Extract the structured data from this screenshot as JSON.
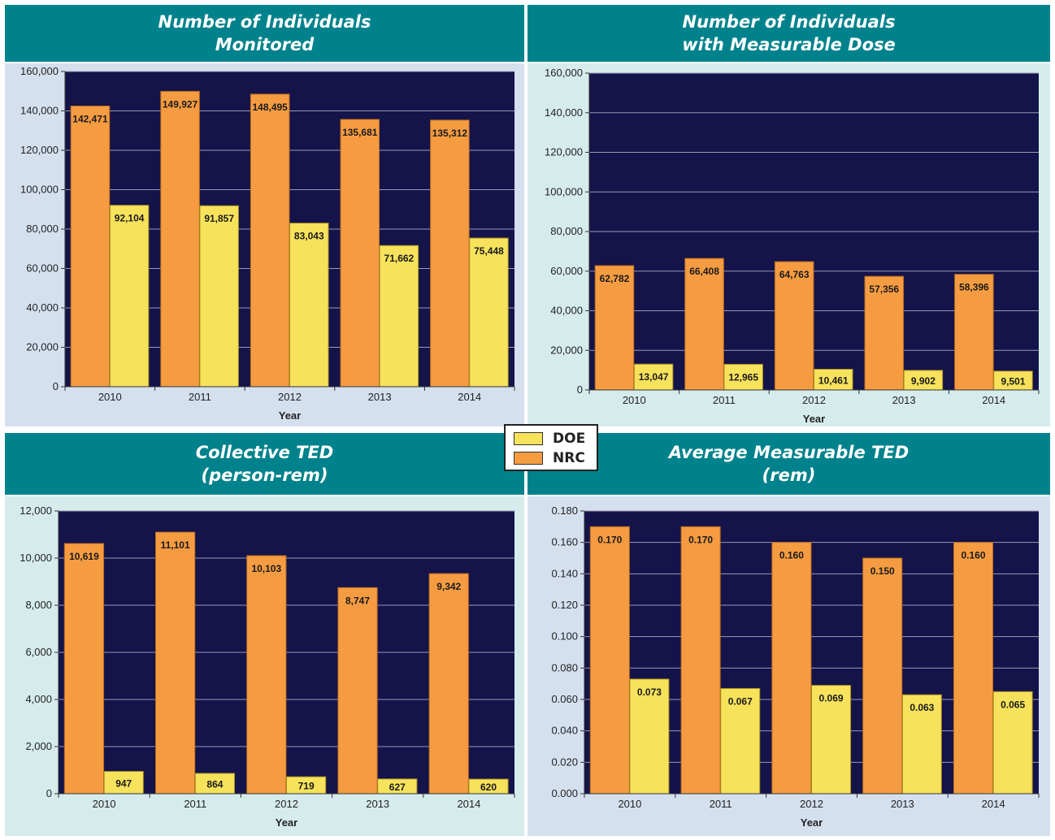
{
  "colors": {
    "header_bg": "#00828c",
    "plot_bg": "#14134a",
    "doe": "#f7e25c",
    "nrc": "#f59c42",
    "panel_bg_blue": "#d5e0ef",
    "panel_bg_mint": "#d6ecec"
  },
  "legend": {
    "items": [
      {
        "label": "DOE",
        "color": "#f7e25c"
      },
      {
        "label": "NRC",
        "color": "#f59c42"
      }
    ]
  },
  "chart_data": [
    {
      "type": "bar",
      "title_lines": [
        "Number of Individuals",
        "Monitored"
      ],
      "categories": [
        "2010",
        "2011",
        "2012",
        "2013",
        "2014"
      ],
      "series": [
        {
          "name": "NRC",
          "values": [
            142471,
            149927,
            148495,
            135681,
            135312
          ],
          "labels": [
            "142,471",
            "149,927",
            "148,495",
            "135,681",
            "135,312"
          ]
        },
        {
          "name": "DOE",
          "values": [
            92104,
            91857,
            83043,
            71662,
            75448
          ],
          "labels": [
            "92,104",
            "91,857",
            "83,043",
            "71,662",
            "75,448"
          ]
        }
      ],
      "xlabel": "Year",
      "ylabel": "",
      "ylim": [
        0,
        160000
      ],
      "yticks": [
        "0",
        "20,000",
        "40,000",
        "60,000",
        "80,000",
        "100,000",
        "120,000",
        "140,000",
        "160,000"
      ],
      "grid": true
    },
    {
      "type": "bar",
      "title_lines": [
        "Number of Individuals",
        "with Measurable Dose"
      ],
      "categories": [
        "2010",
        "2011",
        "2012",
        "2013",
        "2014"
      ],
      "series": [
        {
          "name": "NRC",
          "values": [
            62782,
            66408,
            64763,
            57356,
            58396
          ],
          "labels": [
            "62,782",
            "66,408",
            "64,763",
            "57,356",
            "58,396"
          ]
        },
        {
          "name": "DOE",
          "values": [
            13047,
            12965,
            10461,
            9902,
            9501
          ],
          "labels": [
            "13,047",
            "12,965",
            "10,461",
            "9,902",
            "9,501"
          ]
        }
      ],
      "xlabel": "Year",
      "ylabel": "",
      "ylim": [
        0,
        160000
      ],
      "yticks": [
        "0",
        "20,000",
        "40,000",
        "60,000",
        "80,000",
        "100,000",
        "120,000",
        "140,000",
        "160,000"
      ],
      "grid": true
    },
    {
      "type": "bar",
      "title_lines": [
        "Collective TED",
        "(person-rem)"
      ],
      "categories": [
        "2010",
        "2011",
        "2012",
        "2013",
        "2014"
      ],
      "series": [
        {
          "name": "NRC",
          "values": [
            10619,
            11101,
            10103,
            8747,
            9342
          ],
          "labels": [
            "10,619",
            "11,101",
            "10,103",
            "8,747",
            "9,342"
          ]
        },
        {
          "name": "DOE",
          "values": [
            947,
            864,
            719,
            627,
            620
          ],
          "labels": [
            "947",
            "864",
            "719",
            "627",
            "620"
          ]
        }
      ],
      "xlabel": "Year",
      "ylabel": "",
      "ylim": [
        0,
        12000
      ],
      "yticks": [
        "0",
        "2,000",
        "4,000",
        "6,000",
        "8,000",
        "10,000",
        "12,000"
      ],
      "grid": true
    },
    {
      "type": "bar",
      "title_lines": [
        "Average Measurable TED",
        "(rem)"
      ],
      "categories": [
        "2010",
        "2011",
        "2012",
        "2013",
        "2014"
      ],
      "series": [
        {
          "name": "NRC",
          "values": [
            0.17,
            0.17,
            0.16,
            0.15,
            0.16
          ],
          "labels": [
            "0.170",
            "0.170",
            "0.160",
            "0.150",
            "0.160"
          ]
        },
        {
          "name": "DOE",
          "values": [
            0.073,
            0.067,
            0.069,
            0.063,
            0.065
          ],
          "labels": [
            "0.073",
            "0.067",
            "0.069",
            "0.063",
            "0.065"
          ]
        }
      ],
      "xlabel": "Year",
      "ylabel": "",
      "ylim": [
        0,
        0.18
      ],
      "yticks": [
        "0.000",
        "0.020",
        "0.040",
        "0.060",
        "0.080",
        "0.100",
        "0.120",
        "0.140",
        "0.160",
        "0.180"
      ],
      "grid": true
    }
  ]
}
